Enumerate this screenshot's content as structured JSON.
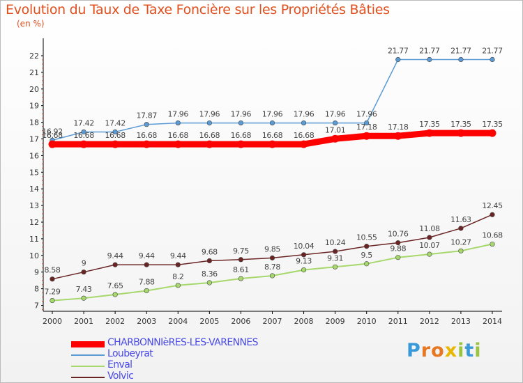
{
  "title": "Evolution du Taux de Taxe Foncière sur les Propriétés Bâties",
  "unit_label": "(en %)",
  "logo": {
    "letters": [
      "P",
      "r",
      "o",
      "x",
      "i",
      "t",
      "i"
    ],
    "colors": [
      "#3a9ad9",
      "#e87722",
      "#e87722",
      "#e8b800",
      "#9ac43c",
      "#3a9ad9",
      "#9ac43c"
    ]
  },
  "chart_data": {
    "type": "line",
    "x": [
      2000,
      2001,
      2002,
      2003,
      2004,
      2005,
      2006,
      2007,
      2008,
      2009,
      2010,
      2011,
      2012,
      2013,
      2014
    ],
    "ylim": [
      7,
      22
    ],
    "yticks": [
      7,
      8,
      9,
      10,
      11,
      12,
      13,
      14,
      15,
      16,
      17,
      18,
      19,
      20,
      21,
      22
    ],
    "grid": false,
    "legend_position": "bottom-left",
    "series": [
      {
        "name": "CHARBONNIèRES-LES-VARENNES",
        "color": "#ff0000",
        "width": 9,
        "values": [
          16.68,
          16.68,
          16.68,
          16.68,
          16.68,
          16.68,
          16.68,
          16.68,
          16.68,
          17.01,
          17.18,
          17.18,
          17.35,
          17.35,
          17.35
        ]
      },
      {
        "name": "Loubeyrat",
        "color": "#5b9bd5",
        "width": 1.5,
        "values": [
          16.92,
          17.42,
          17.42,
          17.87,
          17.96,
          17.96,
          17.96,
          17.96,
          17.96,
          17.96,
          17.96,
          21.77,
          21.77,
          21.77,
          21.77
        ]
      },
      {
        "name": "Enval",
        "color": "#a6d86c",
        "width": 2,
        "values": [
          7.29,
          7.43,
          7.65,
          7.88,
          8.2,
          8.36,
          8.61,
          8.78,
          9.13,
          9.31,
          9.5,
          9.88,
          10.07,
          10.27,
          10.68
        ]
      },
      {
        "name": "Volvic",
        "color": "#6b2424",
        "width": 1.5,
        "values": [
          8.58,
          9,
          9.44,
          9.44,
          9.44,
          9.68,
          9.75,
          9.85,
          10.04,
          10.24,
          10.55,
          10.76,
          11.08,
          11.63,
          12.45
        ]
      }
    ],
    "data_labels": {
      "CHARBONNIèRES-LES-VARENNES": [
        "16.68",
        "16.68",
        "16.68",
        "16.68",
        "16.68",
        "16.68",
        "16.68",
        "16.68",
        "16.68",
        "17.01",
        "17.18",
        "17.18",
        "17.35",
        "17.35",
        "17.35"
      ],
      "Loubeyrat": [
        "16.92",
        "17.42",
        "17.42",
        "17.87",
        "17.96",
        "17.96",
        "17.96",
        "17.96",
        "17.96",
        "17.96",
        "17.96",
        "21.77",
        "21.77",
        "21.77",
        "21.77"
      ],
      "Enval": [
        "7.29",
        "7.43",
        "7.65",
        "7.88",
        "8.2",
        "8.36",
        "8.61",
        "8.78",
        "9.13",
        "9.31",
        "9.5",
        "9.88",
        "10.07",
        "10.27",
        "10.68"
      ],
      "Volvic": [
        "8.58",
        "9",
        "9.44",
        "9.44",
        "9.44",
        "9.68",
        "9.75",
        "9.85",
        "10.04",
        "10.24",
        "10.55",
        "10.76",
        "11.08",
        "11.63",
        "12.45"
      ]
    }
  }
}
